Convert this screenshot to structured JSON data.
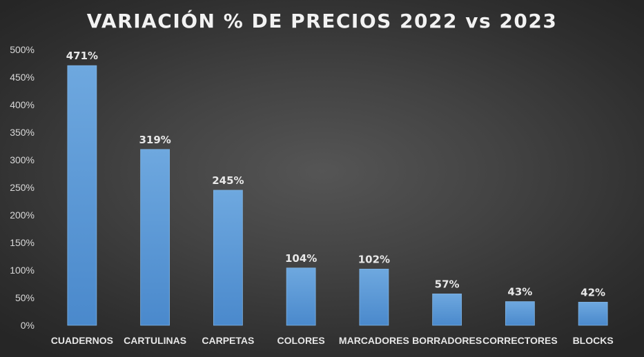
{
  "chart_data": {
    "type": "bar",
    "title": "VARIACIÓN % DE PRECIOS 2022 vs 2023",
    "categories": [
      "CUADERNOS",
      "CARTULINAS",
      "CARPETAS",
      "COLORES",
      "MARCADORES",
      "BORRADORES",
      "CORRECTORES",
      "BLOCKS"
    ],
    "values": [
      471,
      319,
      245,
      104,
      102,
      57,
      43,
      42
    ],
    "data_labels": [
      "471%",
      "319%",
      "245%",
      "104%",
      "102%",
      "57%",
      "43%",
      "42%"
    ],
    "y_ticks": [
      "0%",
      "50%",
      "100%",
      "150%",
      "200%",
      "250%",
      "300%",
      "350%",
      "400%",
      "450%",
      "500%"
    ],
    "ylim": [
      0,
      500
    ],
    "grid": false,
    "bar_color": "#5b9bd5",
    "background_color": "#404040"
  }
}
